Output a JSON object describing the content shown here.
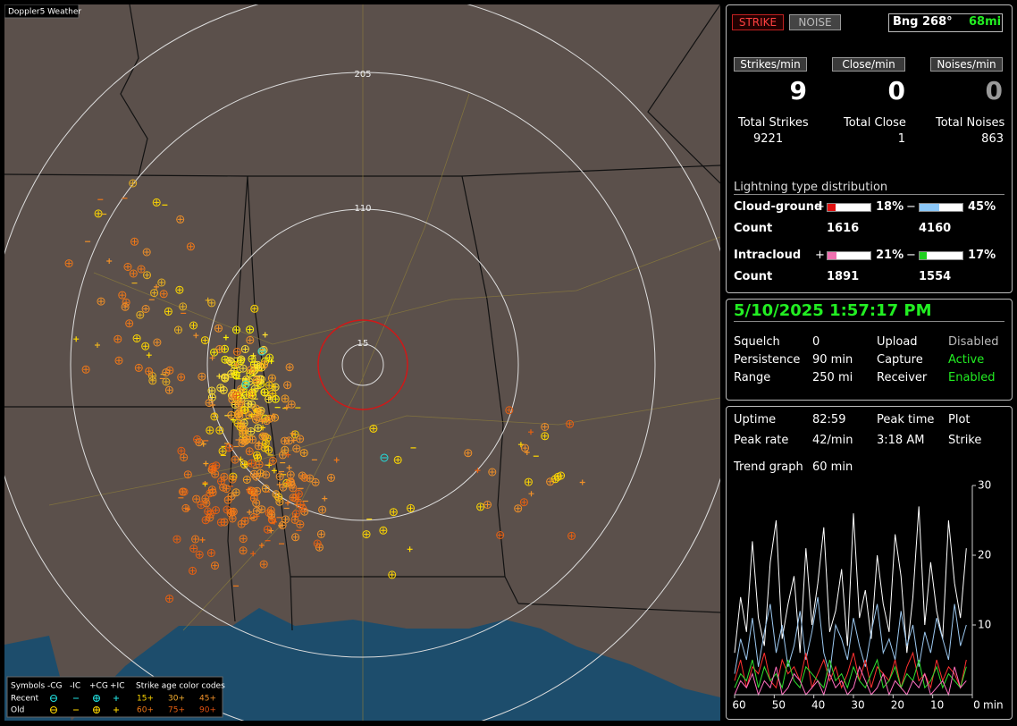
{
  "map": {
    "title": "Doppler5 Weather",
    "range_rings": [
      "205",
      "110",
      "15"
    ],
    "legend": {
      "symbols_label": "Symbols",
      "symbol_names": [
        "-CG",
        "-IC",
        "+CG",
        "+IC"
      ],
      "age_label": "Strike age color codes",
      "rows": [
        {
          "label": "Recent",
          "ages": [
            "15+",
            "30+",
            "45+"
          ]
        },
        {
          "label": "Old",
          "ages": [
            "60+",
            "75+",
            "90+"
          ]
        }
      ]
    }
  },
  "status": {
    "strike": "STRIKE",
    "noise": "NOISE",
    "bearing": "Bng 268°",
    "distance": "68mi"
  },
  "rates": [
    {
      "label": "Strikes/min",
      "value": 9,
      "total_label": "Total Strikes",
      "total": 9221
    },
    {
      "label": "Close/min",
      "value": 0,
      "total_label": "Total Close",
      "total": 1
    },
    {
      "label": "Noises/min",
      "value": 0,
      "total_label": "Total Noises",
      "total": 863
    }
  ],
  "distribution": {
    "title": "Lightning type distribution",
    "rows": [
      {
        "label": "Cloud-ground",
        "pos_sign": "+",
        "pos": {
          "value": 18,
          "label": "18%"
        },
        "neg_sign": "−",
        "neg": {
          "value": 45,
          "label": "45%"
        },
        "count_label": "Count",
        "pos_count": 1616,
        "neg_count": 4160
      },
      {
        "label": "Intracloud",
        "pos_sign": "+",
        "pos": {
          "value": 21,
          "label": "21%"
        },
        "neg_sign": "−",
        "neg": {
          "value": 17,
          "label": "17%"
        },
        "count_label": "Count",
        "pos_count": 1891,
        "neg_count": 1554
      }
    ]
  },
  "clock": "5/10/2025 1:57:17 PM",
  "settings": [
    [
      "Squelch",
      "0",
      "Upload",
      "Disabled"
    ],
    [
      "Persistence",
      "90 min",
      "Capture",
      "Active"
    ],
    [
      "Range",
      "250 mi",
      "Receiver",
      "Enabled"
    ]
  ],
  "stats": [
    [
      "Uptime",
      "82:59",
      "Peak time",
      "Plot"
    ],
    [
      "Peak rate",
      "42/min",
      "3:18 AM",
      "Strike"
    ]
  ],
  "trend": {
    "label": "Trend graph",
    "window": "60 min"
  },
  "trend_graph": {
    "x_unit": "min",
    "xlim": [
      60,
      0
    ],
    "xticks": [
      60,
      50,
      40,
      30,
      20,
      10,
      0
    ],
    "ylim": [
      0,
      30
    ],
    "yticks": [
      10,
      20,
      30
    ],
    "x": [
      60,
      58.5,
      57,
      55.5,
      54,
      52.5,
      51,
      49.5,
      48,
      46.5,
      45,
      43.5,
      42,
      40.5,
      39,
      37.5,
      36,
      34.5,
      33,
      31.5,
      30,
      28.5,
      27,
      25.5,
      24,
      22.5,
      21,
      19.5,
      18,
      16.5,
      15,
      13.5,
      12,
      10.5,
      9,
      7.5,
      6,
      4.5,
      3,
      1.5
    ],
    "series": [
      {
        "color": "#ffffff",
        "values": [
          6,
          14,
          9,
          22,
          11,
          7,
          19,
          25,
          8,
          13,
          17,
          6,
          21,
          10,
          16,
          24,
          9,
          12,
          18,
          7,
          26,
          11,
          15,
          8,
          20,
          13,
          9,
          23,
          17,
          6,
          14,
          27,
          10,
          19,
          12,
          8,
          25,
          16,
          11,
          21
        ]
      },
      {
        "color": "#9cc8f0",
        "values": [
          3,
          8,
          5,
          11,
          4,
          9,
          13,
          6,
          10,
          4,
          7,
          12,
          5,
          9,
          14,
          6,
          3,
          10,
          8,
          5,
          11,
          7,
          4,
          9,
          13,
          6,
          8,
          5,
          12,
          7,
          10,
          4,
          9,
          6,
          11,
          8,
          5,
          13,
          7,
          10
        ]
      },
      {
        "color": "#ff3030",
        "values": [
          2,
          5,
          1,
          4,
          3,
          6,
          2,
          1,
          5,
          3,
          4,
          2,
          6,
          1,
          3,
          5,
          2,
          4,
          1,
          3,
          6,
          2,
          5,
          1,
          4,
          3,
          2,
          5,
          1,
          4,
          6,
          2,
          3,
          1,
          5,
          2,
          4,
          3,
          1,
          5
        ]
      },
      {
        "color": "#30e030",
        "values": [
          1,
          3,
          2,
          5,
          1,
          4,
          2,
          3,
          1,
          5,
          2,
          1,
          4,
          3,
          2,
          1,
          5,
          2,
          3,
          1,
          4,
          2,
          1,
          3,
          5,
          1,
          2,
          4,
          1,
          3,
          2,
          5,
          1,
          2,
          4,
          1,
          3,
          2,
          1,
          4
        ]
      },
      {
        "color": "#ff70c0",
        "values": [
          0,
          2,
          1,
          3,
          0,
          2,
          1,
          4,
          0,
          1,
          3,
          2,
          0,
          1,
          2,
          0,
          3,
          1,
          2,
          0,
          1,
          4,
          2,
          0,
          1,
          3,
          0,
          2,
          1,
          0,
          2,
          1,
          3,
          0,
          1,
          2,
          0,
          4,
          1,
          2
        ]
      }
    ]
  }
}
